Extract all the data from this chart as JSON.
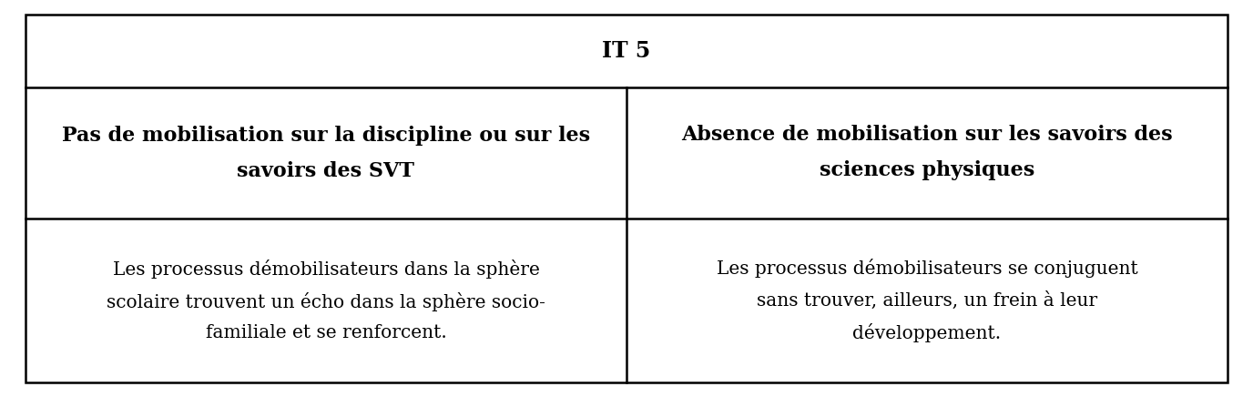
{
  "title": "IT 5",
  "col1_header": "Pas de mobilisation sur la discipline ou sur les\nsavoirs des SVT",
  "col2_header": "Absence de mobilisation sur les savoirs des\nsciences physiques",
  "col1_body": "Les processus démobilisateurs dans la sphère\nscolaire trouvent un écho dans la sphère socio-\nfamiliale et se renforcent.",
  "col2_body": "Les processus démobilisateurs se conjuguent\nsans trouver, ailleurs, un frein à leur\ndéveloppement.",
  "bg_color": "#ffffff",
  "border_color": "#000000",
  "title_fontsize": 17,
  "header_fontsize": 16,
  "body_fontsize": 14.5
}
